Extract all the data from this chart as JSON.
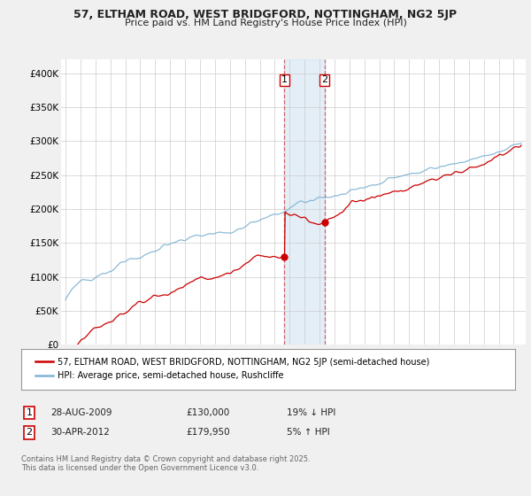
{
  "title_line1": "57, ELTHAM ROAD, WEST BRIDGFORD, NOTTINGHAM, NG2 5JP",
  "title_line2": "Price paid vs. HM Land Registry's House Price Index (HPI)",
  "ylim": [
    0,
    420000
  ],
  "yticks": [
    0,
    50000,
    100000,
    150000,
    200000,
    250000,
    300000,
    350000,
    400000
  ],
  "ytick_labels": [
    "£0",
    "£50K",
    "£100K",
    "£150K",
    "£200K",
    "£250K",
    "£300K",
    "£350K",
    "£400K"
  ],
  "x_start_year": 1995,
  "x_end_year": 2025,
  "hpi_color": "#7fb3d3",
  "price_color": "#cc0000",
  "transaction1_date": 2009.65,
  "transaction1_price": 130000,
  "transaction1_label": "1",
  "transaction2_date": 2012.33,
  "transaction2_price": 179950,
  "transaction2_label": "2",
  "legend_line1": "57, ELTHAM ROAD, WEST BRIDGFORD, NOTTINGHAM, NG2 5JP (semi-detached house)",
  "legend_line2": "HPI: Average price, semi-detached house, Rushcliffe",
  "table_row1": [
    "1",
    "28-AUG-2009",
    "£130,000",
    "19% ↓ HPI"
  ],
  "table_row2": [
    "2",
    "30-APR-2012",
    "£179,950",
    "5% ↑ HPI"
  ],
  "footer": "Contains HM Land Registry data © Crown copyright and database right 2025.\nThis data is licensed under the Open Government Licence v3.0.",
  "background_color": "#f0f0f0",
  "plot_background": "#ffffff",
  "shade_color": "#c8dff0",
  "shade_alpha": 0.5
}
